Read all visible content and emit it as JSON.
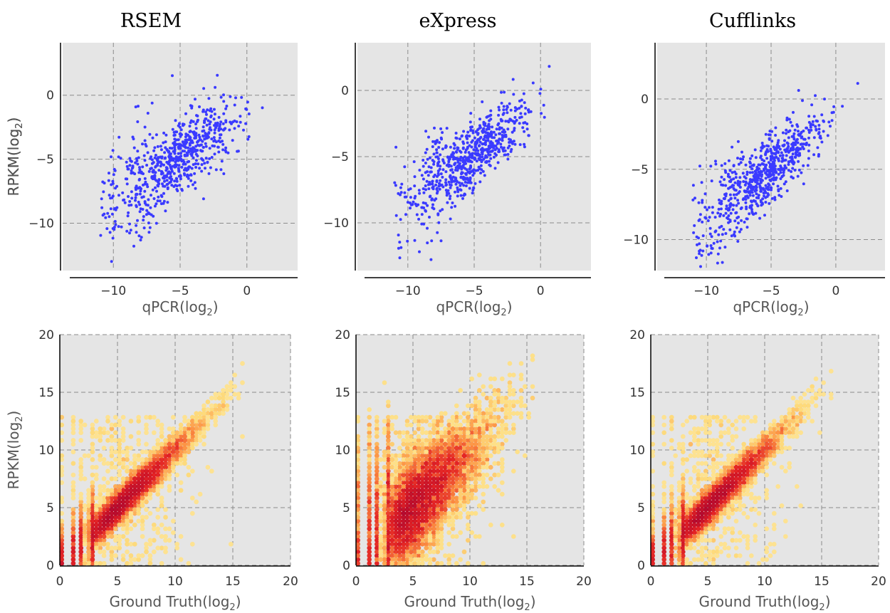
{
  "figure": {
    "column_titles": [
      "RSEM",
      "eXpress",
      "Cufflinks"
    ]
  },
  "colors": {
    "panel_bg": "#e5e5e5",
    "grid": "#8c8c8c",
    "scatter_point": "#3a3aff",
    "hex_low": "#fff2b3",
    "hex_mid": "#fd8d3c",
    "hex_high": "#c41b1b"
  },
  "chart_data": [
    {
      "type": "scatter",
      "title": "RSEM",
      "xlabel": "qPCR(log2)",
      "ylabel": "RPKM(log2)",
      "xlim": [
        -13.8,
        3.8
      ],
      "ylim": [
        -13.7,
        4.1
      ],
      "xticks": [
        -10,
        -5,
        0
      ],
      "yticks": [
        -10,
        -5,
        0
      ],
      "xtick_labels": [
        "−10",
        "−5",
        "0"
      ],
      "ytick_labels": [
        "−10",
        "−5",
        "0"
      ],
      "grid": true,
      "trend": {
        "slope": 0.72,
        "intercept": -1.1,
        "spread": 1.4
      },
      "n_points": 700
    },
    {
      "type": "scatter",
      "title": "eXpress",
      "xlabel": "qPCR(log2)",
      "ylabel": "RPKM(log2)",
      "xlim": [
        -13.8,
        3.8
      ],
      "ylim": [
        -13.6,
        3.6
      ],
      "xticks": [
        -10,
        -5,
        0
      ],
      "yticks": [
        -10,
        -5,
        0
      ],
      "xtick_labels": [
        "−10",
        "−5",
        "0"
      ],
      "ytick_labels": [
        "−10",
        "−5",
        "0"
      ],
      "grid": true,
      "trend": {
        "slope": 0.72,
        "intercept": -1.2,
        "spread": 1.2
      },
      "n_points": 700
    },
    {
      "type": "scatter",
      "title": "Cufflinks",
      "xlabel": "qPCR(log2)",
      "ylabel": "RPKM(log2)",
      "xlim": [
        -13.8,
        3.8
      ],
      "ylim": [
        -12.2,
        4.0
      ],
      "xticks": [
        -10,
        -5,
        0
      ],
      "yticks": [
        -10,
        -5,
        0
      ],
      "xtick_labels": [
        "−10",
        "−5",
        "0"
      ],
      "ytick_labels": [
        "−10",
        "−5",
        "0"
      ],
      "grid": true,
      "trend": {
        "slope": 0.8,
        "intercept": -1.0,
        "spread": 1.2
      },
      "n_points": 700
    },
    {
      "type": "heatmap",
      "title": "",
      "xlabel": "Ground Truth(log2)",
      "ylabel": "RPKM(log2)",
      "xlim": [
        0,
        20
      ],
      "ylim": [
        0,
        20
      ],
      "xticks": [
        0,
        5,
        10,
        15,
        20
      ],
      "yticks": [
        0,
        5,
        10,
        15,
        20
      ],
      "xtick_labels": [
        "0",
        "5",
        "10",
        "15",
        "20"
      ],
      "ytick_labels": [
        "0",
        "5",
        "10",
        "15",
        "20"
      ],
      "grid": true,
      "trend": {
        "slope": 1.0,
        "intercept": 0.0,
        "spread": 0.7
      },
      "n_points": 9000
    },
    {
      "type": "heatmap",
      "title": "",
      "xlabel": "Ground Truth(log2)",
      "ylabel": "",
      "xlim": [
        0,
        20
      ],
      "ylim": [
        0,
        20
      ],
      "xticks": [
        0,
        5,
        10,
        15,
        20
      ],
      "yticks": [
        0,
        5,
        10,
        15,
        20
      ],
      "xtick_labels": [
        "0",
        "5",
        "10",
        "15",
        "20"
      ],
      "ytick_labels": [
        "0",
        "5",
        "10",
        "15",
        "20"
      ],
      "grid": true,
      "trend": {
        "slope": 0.95,
        "intercept": 0.3,
        "spread": 2.0
      },
      "n_points": 9000
    },
    {
      "type": "heatmap",
      "title": "",
      "xlabel": "Ground Truth(log2)",
      "ylabel": "",
      "xlim": [
        0,
        20
      ],
      "ylim": [
        0,
        20
      ],
      "xticks": [
        0,
        5,
        10,
        15,
        20
      ],
      "yticks": [
        0,
        5,
        10,
        15,
        20
      ],
      "xtick_labels": [
        "0",
        "5",
        "10",
        "15",
        "20"
      ],
      "ytick_labels": [
        "0",
        "5",
        "10",
        "15",
        "20"
      ],
      "grid": true,
      "trend": {
        "slope": 1.0,
        "intercept": 0.0,
        "spread": 0.7
      },
      "n_points": 9000
    }
  ]
}
